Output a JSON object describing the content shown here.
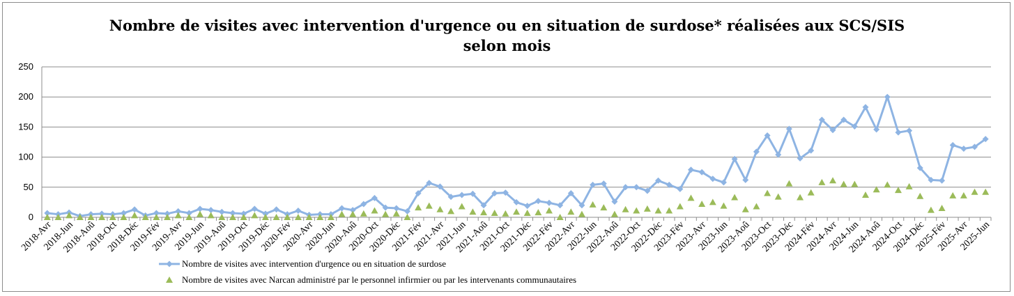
{
  "chart_data": {
    "type": "line",
    "title_line1": "Nombre de visites avec intervention d'urgence ou en situation de surdose* réalisées aux SCS/SIS",
    "title_line2": "selon mois",
    "ylim": [
      0,
      250
    ],
    "yticks": [
      0,
      50,
      100,
      150,
      200,
      250
    ],
    "grid": true,
    "legend_position": "bottom",
    "x": [
      "2018-Avr",
      "2018-Mai",
      "2018-Jun",
      "2018-Jul",
      "2018-Aoû",
      "2018-Sep",
      "2018-Oct",
      "2018-Nov",
      "2018-Déc",
      "2019-Jan",
      "2019-Fév",
      "2019-Mar",
      "2019-Avr",
      "2019-Mai",
      "2019-Jun",
      "2019-Jul",
      "2019-Aoû",
      "2019-Sep",
      "2019-Oct",
      "2019-Nov",
      "2019-Déc",
      "2020-Jan",
      "2020-Fév",
      "2020-Mar",
      "2020-Avr",
      "2020-Mai",
      "2020-Jun",
      "2020-Jul",
      "2020-Aoû",
      "2020-Sep",
      "2020-Oct",
      "2020-Nov",
      "2020-Déc",
      "2021-Jan",
      "2021-Fév",
      "2021-Mar",
      "2021-Avr",
      "2021-Mai",
      "2021-Jun",
      "2021-Jul",
      "2021-Aoû",
      "2021-Sep",
      "2021-Oct",
      "2021-Nov",
      "2021-Déc",
      "2022-Jan",
      "2022-Fév",
      "2022-Mar",
      "2022-Avr",
      "2022-Mai",
      "2022-Jun",
      "2022-Jul",
      "2022-Aoû",
      "2022-Sep",
      "2022-Oct",
      "2022-Nov",
      "2022-Déc",
      "2023-Jan",
      "2023-Fév",
      "2023-Mar",
      "2023-Avr",
      "2023-Mai",
      "2023-Jun",
      "2023-Jul",
      "2023-Aoû",
      "2023-Sep",
      "2023-Oct",
      "2023-Nov",
      "2023-Déc",
      "2024-Jan",
      "2024-Fév",
      "2024-Mar",
      "2024-Avr",
      "2024-Mai",
      "2024-Jun",
      "2024-Jul",
      "2024-Aoû",
      "2024-Sep",
      "2024-Oct",
      "2024-Nov",
      "2024-Déc",
      "2025-Jan",
      "2025-Fév",
      "2025-Mar",
      "2025-Avr",
      "2025-Mai",
      "2025-Jun"
    ],
    "x_tick_labels": [
      "2018-Avr",
      "2018-Jun",
      "2018-Aoû",
      "2018-Oct",
      "2018-Déc",
      "2019-Fév",
      "2019-Avr",
      "2019-Jun",
      "2019-Aoû",
      "2019-Oct",
      "2019-Déc",
      "2020-Fév",
      "2020-Avr",
      "2020-Jun",
      "2020-Aoû",
      "2020-Oct",
      "2020-Déc",
      "2021-Fév",
      "2021-Avr",
      "2021-Jun",
      "2021-Aoû",
      "2021-Oct",
      "2021-Déc",
      "2022-Fév",
      "2022-Avr",
      "2022-Jun",
      "2022-Aoû",
      "2022-Oct",
      "2022-Déc",
      "2023-Fév",
      "2023-Avr",
      "2023-Jun",
      "2023-Aoû",
      "2023-Oct",
      "2023-Déc",
      "2024-Fév",
      "2024-Avr",
      "2024-Jun",
      "2024-Aoû",
      "2024-Oct",
      "2024-Déc",
      "2025-Fév",
      "2025-Avr",
      "2025-Jun"
    ],
    "series": [
      {
        "name": "Nombre de visites avec intervention d'urgence ou en situation de surdose",
        "color": "#8eb4e3",
        "marker": "diamond",
        "values": [
          7,
          5,
          8,
          2,
          5,
          6,
          5,
          7,
          13,
          3,
          7,
          6,
          10,
          7,
          14,
          12,
          9,
          7,
          6,
          14,
          6,
          13,
          5,
          11,
          4,
          5,
          5,
          15,
          12,
          22,
          32,
          16,
          15,
          10,
          40,
          57,
          51,
          34,
          37,
          39,
          20,
          40,
          41,
          25,
          19,
          27,
          24,
          20,
          40,
          20,
          54,
          56,
          26,
          50,
          50,
          44,
          61,
          54,
          47,
          79,
          75,
          64,
          58,
          97,
          62,
          109,
          136,
          104,
          147,
          98,
          111,
          162,
          145,
          162,
          151,
          183,
          146,
          200,
          141,
          144,
          82,
          62,
          61,
          120,
          114,
          117,
          130
        ]
      },
      {
        "name": "Nombre de visites avec Narcan administré par le personnel infirmier ou par les intervenants communautaires",
        "color": "#9bbb59",
        "marker": "triangle",
        "values": [
          0,
          0,
          3,
          0,
          0,
          0,
          0,
          0,
          3,
          0,
          0,
          0,
          3,
          0,
          5,
          3,
          0,
          0,
          0,
          3,
          0,
          0,
          0,
          0,
          0,
          0,
          0,
          5,
          5,
          6,
          11,
          5,
          6,
          0,
          16,
          19,
          13,
          10,
          18,
          9,
          8,
          7,
          6,
          9,
          7,
          8,
          11,
          0,
          9,
          5,
          21,
          16,
          5,
          13,
          11,
          14,
          11,
          11,
          18,
          32,
          22,
          25,
          19,
          33,
          13,
          18,
          40,
          34,
          56,
          33,
          41,
          58,
          61,
          55,
          55,
          37,
          46,
          54,
          45,
          51,
          35,
          12,
          15,
          36,
          36,
          42,
          42
        ]
      }
    ]
  }
}
